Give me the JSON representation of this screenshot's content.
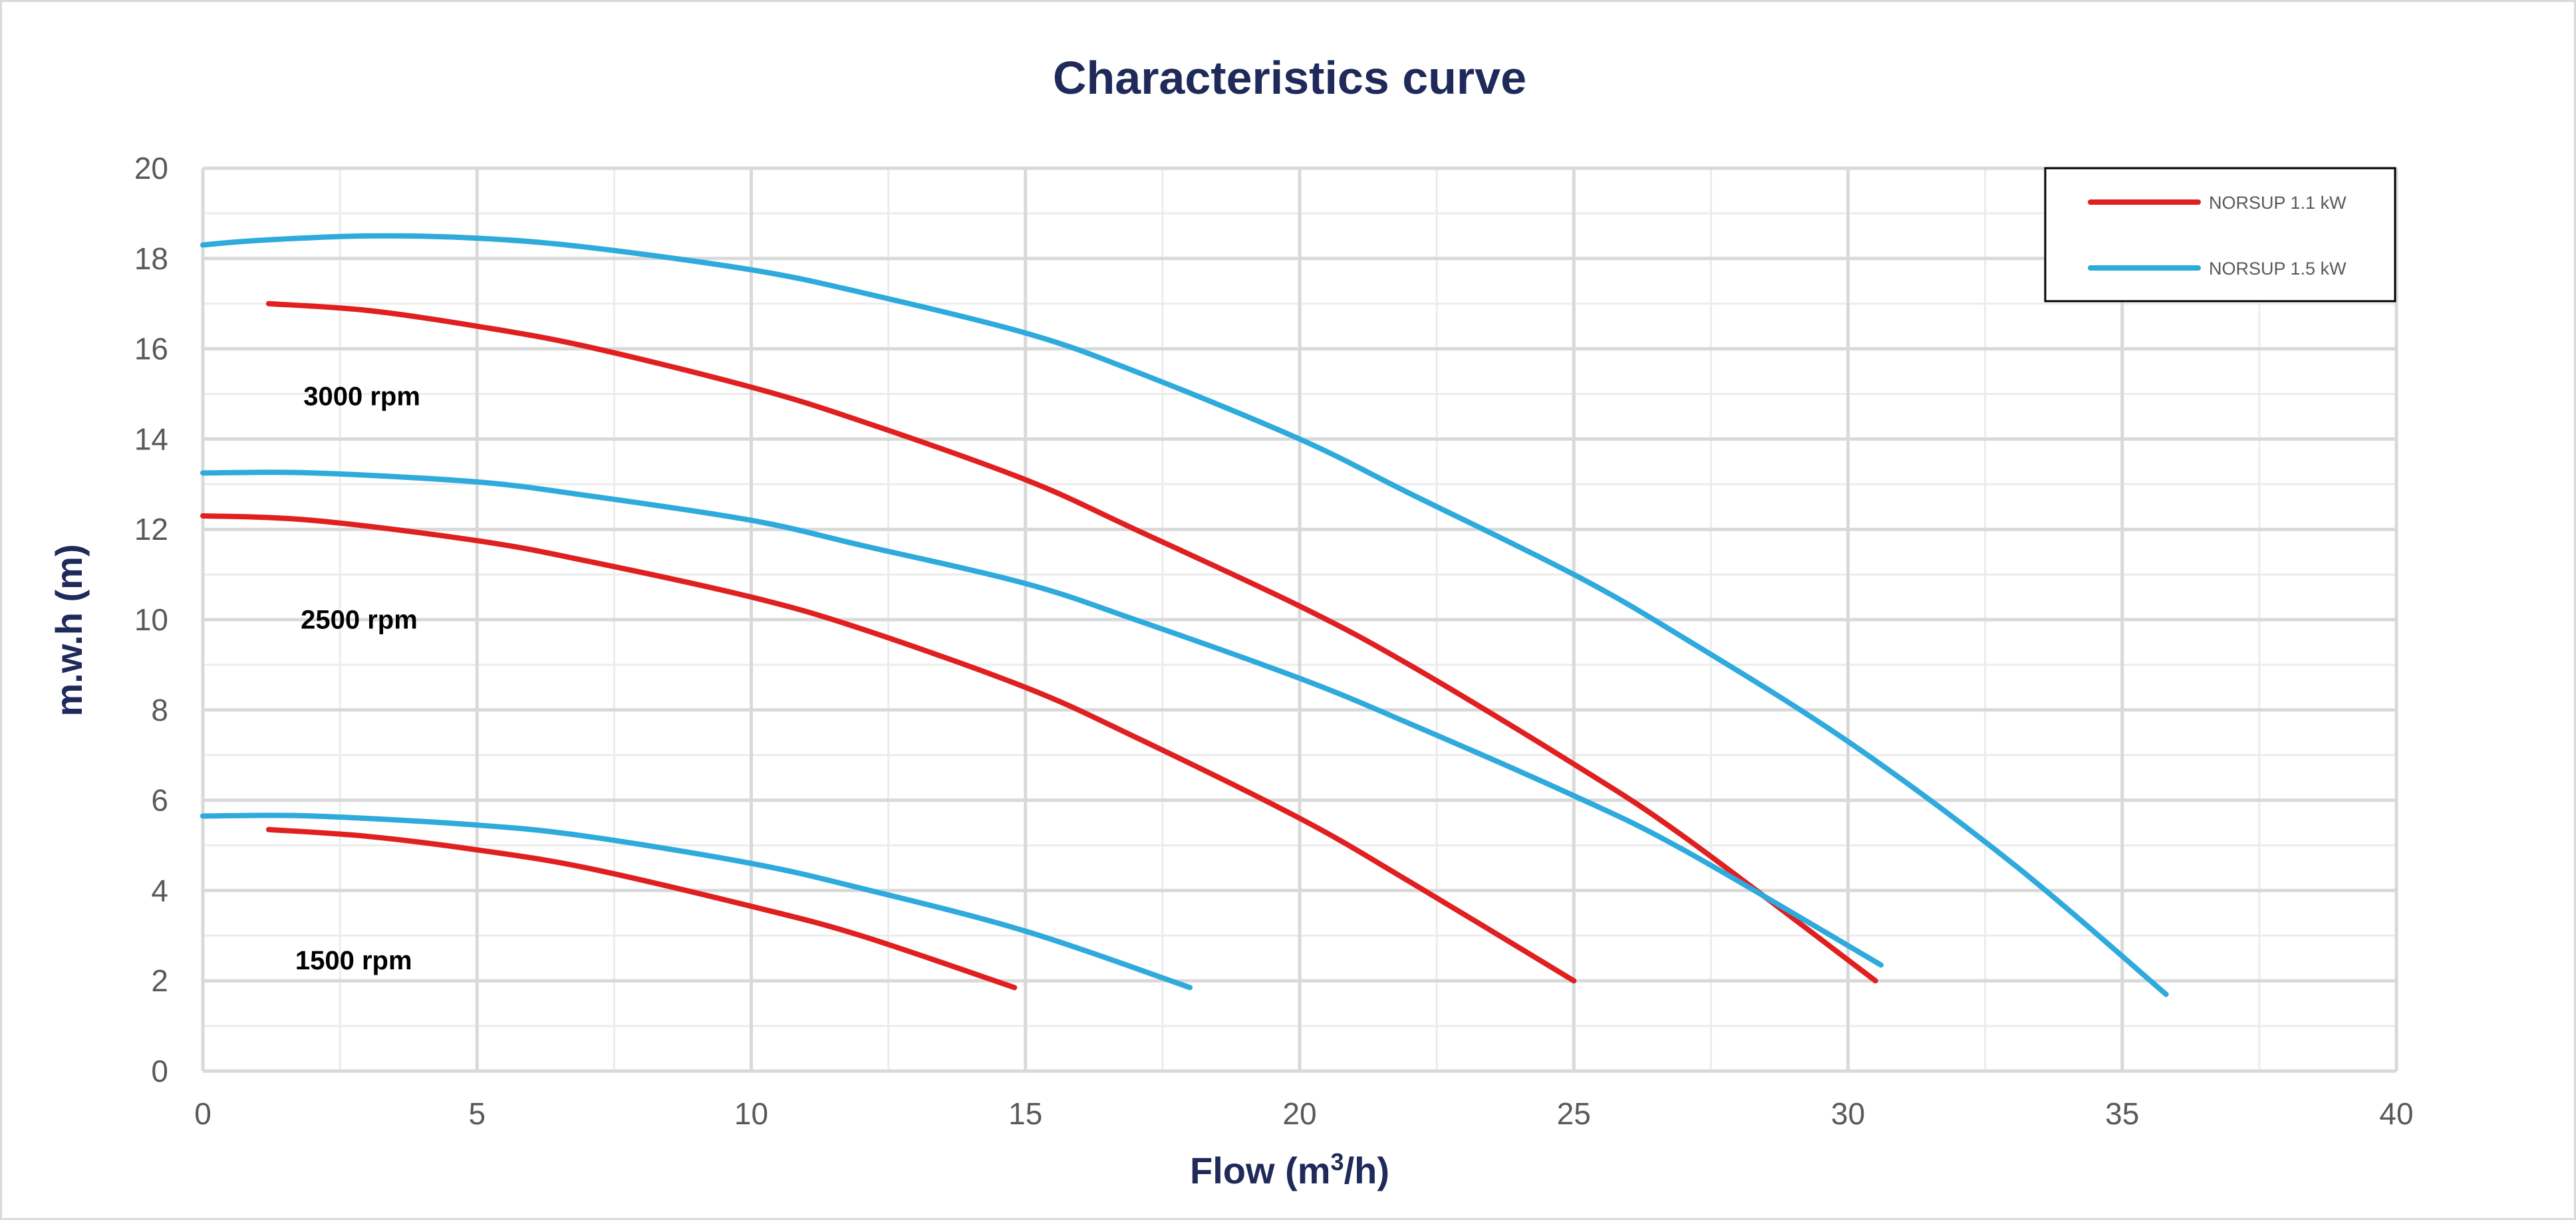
{
  "chart_data": {
    "type": "line",
    "title": "Characteristics curve",
    "xlabel_main": "Flow (m",
    "xlabel_sup": "3",
    "xlabel_tail": "/h)",
    "ylabel": "m.w.h (m)",
    "xlim": [
      0,
      40
    ],
    "ylim": [
      0,
      20
    ],
    "x_ticks": [
      0,
      5,
      10,
      15,
      20,
      25,
      30,
      35,
      40
    ],
    "y_ticks": [
      0,
      2,
      4,
      6,
      8,
      10,
      12,
      14,
      16,
      18,
      20
    ],
    "x_tick_labels": [
      "0",
      "5",
      "10",
      "15",
      "20",
      "25",
      "30",
      "35",
      "40"
    ],
    "y_tick_labels": [
      "0",
      "2",
      "4",
      "6",
      "8",
      "10",
      "12",
      "14",
      "16",
      "18",
      "20"
    ],
    "grid": true,
    "minor_grid_x_step": 2.5,
    "minor_grid_y_step": 1,
    "legend_position": "top-right",
    "legend": [
      {
        "label": "NORSUP 1.1 kW",
        "color": "#e02020"
      },
      {
        "label": "NORSUP 1.5 kW",
        "color": "#2eaadc"
      }
    ],
    "annotations": [
      {
        "text": "3000 rpm",
        "x": 2.9,
        "y": 14.75
      },
      {
        "text": "2500 rpm",
        "x": 2.85,
        "y": 9.8
      },
      {
        "text": "1500 rpm",
        "x": 2.75,
        "y": 2.25
      }
    ],
    "series": [
      {
        "group": "NORSUP 1.1 kW",
        "speed": "3000 rpm",
        "color": "#e02020",
        "x": [
          1.2,
          3,
          5,
          7,
          10,
          12,
          15,
          17,
          20,
          22,
          25,
          27,
          30.5
        ],
        "y": [
          17.0,
          16.85,
          16.5,
          16.05,
          15.15,
          14.4,
          13.1,
          12.0,
          10.3,
          9.0,
          6.8,
          5.2,
          2.0
        ]
      },
      {
        "group": "NORSUP 1.5 kW",
        "speed": "3000 rpm",
        "color": "#2eaadc",
        "x": [
          0,
          1,
          3,
          5,
          7,
          10,
          12,
          15,
          17,
          20,
          22,
          25,
          27,
          30,
          33,
          35.8
        ],
        "y": [
          18.3,
          18.4,
          18.5,
          18.45,
          18.25,
          17.75,
          17.25,
          16.35,
          15.5,
          14.0,
          12.8,
          11.0,
          9.6,
          7.3,
          4.6,
          1.7
        ]
      },
      {
        "group": "NORSUP 1.1 kW",
        "speed": "2500 rpm",
        "color": "#e02020",
        "x": [
          0,
          2,
          5,
          7,
          10,
          12,
          15,
          17,
          20,
          22,
          25
        ],
        "y": [
          12.3,
          12.2,
          11.75,
          11.3,
          10.5,
          9.8,
          8.5,
          7.4,
          5.6,
          4.2,
          2.0
        ]
      },
      {
        "group": "NORSUP 1.5 kW",
        "speed": "2500 rpm",
        "color": "#2eaadc",
        "x": [
          0,
          2,
          5,
          7,
          10,
          12,
          15,
          17,
          20,
          22,
          25,
          27,
          30.6
        ],
        "y": [
          13.25,
          13.25,
          13.05,
          12.75,
          12.2,
          11.65,
          10.8,
          10.0,
          8.7,
          7.7,
          6.1,
          4.9,
          2.35
        ]
      },
      {
        "group": "NORSUP 1.1 kW",
        "speed": "1500 rpm",
        "color": "#e02020",
        "x": [
          1.2,
          3,
          5,
          7,
          10,
          12,
          14.8
        ],
        "y": [
          5.35,
          5.2,
          4.9,
          4.5,
          3.65,
          3.0,
          1.85
        ]
      },
      {
        "group": "NORSUP 1.5 kW",
        "speed": "1500 rpm",
        "color": "#2eaadc",
        "x": [
          0,
          2,
          5,
          7,
          10,
          12,
          15,
          18
        ],
        "y": [
          5.65,
          5.65,
          5.45,
          5.2,
          4.6,
          4.05,
          3.1,
          1.85
        ]
      }
    ]
  }
}
